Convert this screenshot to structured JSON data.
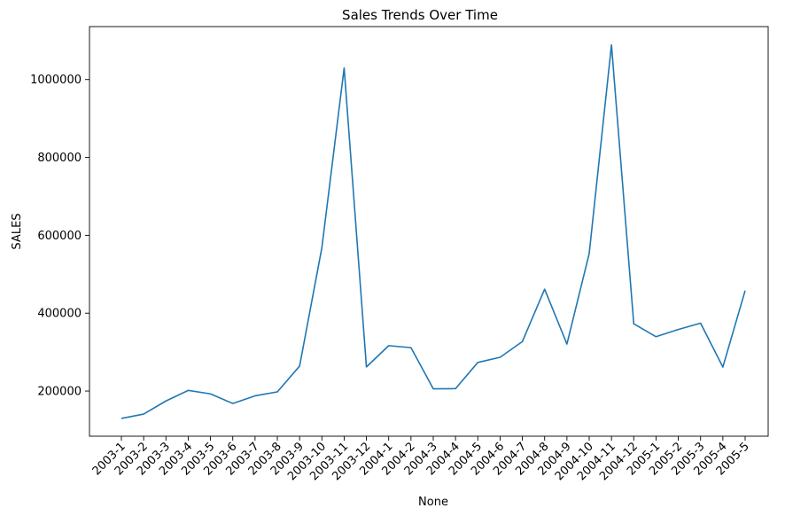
{
  "chart_data": {
    "type": "line",
    "title": "Sales Trends Over Time",
    "xlabel": "None",
    "ylabel": "SALES",
    "categories": [
      "2003-1",
      "2003-2",
      "2003-3",
      "2003-4",
      "2003-5",
      "2003-6",
      "2003-7",
      "2003-8",
      "2003-9",
      "2003-10",
      "2003-11",
      "2003-12",
      "2004-1",
      "2004-2",
      "2004-3",
      "2004-4",
      "2004-5",
      "2004-6",
      "2004-7",
      "2004-8",
      "2004-9",
      "2004-10",
      "2004-11",
      "2004-12",
      "2005-1",
      "2005-2",
      "2005-3",
      "2005-4",
      "2005-5"
    ],
    "series": [
      {
        "values": [
          129754,
          140836,
          174505,
          201610,
          192673,
          168083,
          187731,
          197810,
          263973,
          568291,
          1029838,
          261876,
          316577,
          311419,
          205733,
          206148,
          273438,
          286674,
          327144,
          461501,
          320750,
          552924,
          1089048,
          372803,
          339543,
          358186,
          374262,
          261633,
          457861
        ],
        "color": "#1f77b4"
      }
    ],
    "ylim": [
      84000,
      1136000
    ],
    "yticks": [
      200000,
      400000,
      600000,
      800000,
      1000000
    ],
    "ytick_labels": [
      "200000",
      "400000",
      "600000",
      "800000",
      "1000000"
    ],
    "grid": false,
    "legend": "none"
  }
}
